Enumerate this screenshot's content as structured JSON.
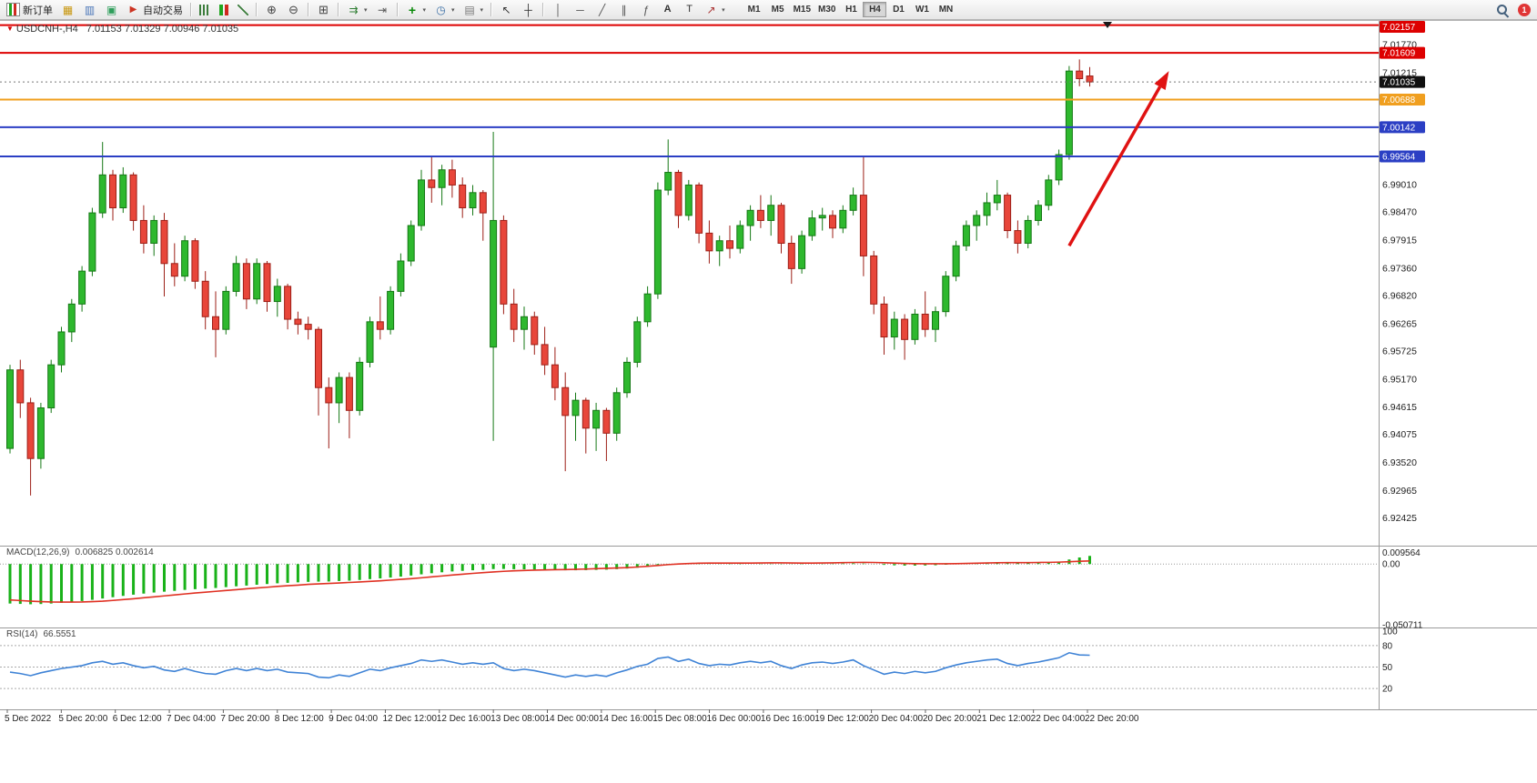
{
  "toolbar": {
    "new_order_label": "新订单",
    "autotrading_label": "自动交易",
    "timeframes": [
      "M1",
      "M5",
      "M15",
      "M30",
      "H1",
      "H4",
      "D1",
      "W1",
      "MN"
    ],
    "active_timeframe": "H4",
    "alert_count": "1",
    "icon_glyphs": {
      "charts_grid": "▦",
      "profiles": "▥",
      "market_watch": "▣",
      "autotrading_play": "▶",
      "zoom_in": "⊕",
      "zoom_out": "⊖",
      "tile_windows": "⊞",
      "auto_scroll": "⇉",
      "chart_shift": "⇥",
      "indicators": "+",
      "periods": "◷",
      "templates": "▤",
      "cursor": "↖",
      "crosshair": "┼",
      "vline": "│",
      "hline": "─",
      "trendline": "╱",
      "channel": "∥",
      "fibonacci": "ƒ",
      "text_tool": "A",
      "label_tool": "T",
      "arrows_tool": "↗",
      "caret": "▾",
      "title_triangle": "▼"
    }
  },
  "chart_data": {
    "type": "candlestick",
    "symbol": "USDCNH-",
    "timeframe": "H4",
    "title": "USDCNH-,H4",
    "ohlc_display": "7.01153 7.01329 7.00946 7.01035",
    "ylim": [
      6.9188,
      7.0224
    ],
    "up_color": "#2eb82e",
    "up_border": "#157815",
    "down_color": "#e8463a",
    "down_border": "#9c1f17",
    "candles": [
      [
        6.938,
        6.9545,
        6.937,
        6.9535
      ],
      [
        6.9535,
        6.9555,
        6.944,
        6.947
      ],
      [
        6.947,
        6.948,
        6.9287,
        6.936
      ],
      [
        6.936,
        6.947,
        6.934,
        6.946
      ],
      [
        6.946,
        6.9555,
        6.945,
        6.9545
      ],
      [
        6.9545,
        6.962,
        6.953,
        6.961
      ],
      [
        6.961,
        6.9675,
        6.959,
        6.9665
      ],
      [
        6.9665,
        6.974,
        6.965,
        6.973
      ],
      [
        6.973,
        6.9855,
        6.972,
        6.9845
      ],
      [
        6.9845,
        6.9985,
        6.9835,
        6.992
      ],
      [
        6.992,
        6.993,
        6.983,
        6.9855
      ],
      [
        6.9855,
        6.9935,
        6.9845,
        6.992
      ],
      [
        6.992,
        6.9925,
        6.981,
        6.983
      ],
      [
        6.983,
        6.986,
        6.9765,
        6.9785
      ],
      [
        6.9785,
        6.984,
        6.976,
        6.983
      ],
      [
        6.983,
        6.9845,
        6.968,
        6.9745
      ],
      [
        6.9745,
        6.9785,
        6.97,
        6.972
      ],
      [
        6.972,
        6.98,
        6.971,
        6.979
      ],
      [
        6.979,
        6.9795,
        6.9695,
        6.971
      ],
      [
        6.971,
        6.973,
        6.9615,
        6.964
      ],
      [
        6.964,
        6.969,
        6.956,
        6.9615
      ],
      [
        6.9615,
        6.97,
        6.9605,
        6.969
      ],
      [
        6.969,
        6.976,
        6.968,
        6.9745
      ],
      [
        6.9745,
        6.9755,
        6.9655,
        6.9675
      ],
      [
        6.9675,
        6.9755,
        6.9665,
        6.9745
      ],
      [
        6.9745,
        6.975,
        6.965,
        6.967
      ],
      [
        6.967,
        6.9715,
        6.964,
        6.97
      ],
      [
        6.97,
        6.9705,
        6.9615,
        6.9635
      ],
      [
        6.9635,
        6.965,
        6.9605,
        6.9625
      ],
      [
        6.9625,
        6.964,
        6.9595,
        6.9615
      ],
      [
        6.9615,
        6.962,
        6.9445,
        6.95
      ],
      [
        6.95,
        6.952,
        6.938,
        6.947
      ],
      [
        6.947,
        6.953,
        6.943,
        6.952
      ],
      [
        6.952,
        6.953,
        6.94,
        6.9455
      ],
      [
        6.9455,
        6.956,
        6.9445,
        6.955
      ],
      [
        6.955,
        6.964,
        6.954,
        6.963
      ],
      [
        6.963,
        6.968,
        6.9595,
        6.9615
      ],
      [
        6.9615,
        6.97,
        6.9605,
        6.969
      ],
      [
        6.969,
        6.9765,
        6.968,
        6.975
      ],
      [
        6.975,
        6.983,
        6.974,
        6.982
      ],
      [
        6.982,
        6.993,
        6.981,
        6.991
      ],
      [
        6.991,
        6.9955,
        6.9865,
        6.9895
      ],
      [
        6.9895,
        6.994,
        6.986,
        6.993
      ],
      [
        6.993,
        6.995,
        6.9875,
        6.99
      ],
      [
        6.99,
        6.9915,
        6.9835,
        6.9855
      ],
      [
        6.9855,
        6.99,
        6.984,
        6.9885
      ],
      [
        6.9885,
        6.989,
        6.979,
        6.9845
      ],
      [
        6.958,
        7.0005,
        6.9395,
        6.983
      ],
      [
        6.983,
        6.984,
        6.9645,
        6.9665
      ],
      [
        6.9665,
        6.9695,
        6.959,
        6.9615
      ],
      [
        6.9615,
        6.966,
        6.9575,
        6.964
      ],
      [
        6.964,
        6.965,
        6.9565,
        6.9585
      ],
      [
        6.9585,
        6.962,
        6.9525,
        6.9545
      ],
      [
        6.9545,
        6.958,
        6.9475,
        6.95
      ],
      [
        6.95,
        6.953,
        6.9335,
        6.9445
      ],
      [
        6.9445,
        6.949,
        6.9395,
        6.9475
      ],
      [
        6.9475,
        6.948,
        6.937,
        6.942
      ],
      [
        6.942,
        6.947,
        6.9375,
        6.9455
      ],
      [
        6.9455,
        6.946,
        6.9355,
        6.941
      ],
      [
        6.941,
        6.95,
        6.9395,
        6.949
      ],
      [
        6.949,
        6.956,
        6.948,
        6.955
      ],
      [
        6.955,
        6.964,
        6.954,
        6.963
      ],
      [
        6.963,
        6.97,
        6.962,
        6.9685
      ],
      [
        6.9685,
        6.9905,
        6.9675,
        6.989
      ],
      [
        6.989,
        6.999,
        6.988,
        6.9925
      ],
      [
        6.9925,
        6.993,
        6.9815,
        6.984
      ],
      [
        6.984,
        6.991,
        6.983,
        6.99
      ],
      [
        6.99,
        6.9905,
        6.9785,
        6.9805
      ],
      [
        6.9805,
        6.983,
        6.9745,
        6.977
      ],
      [
        6.977,
        6.98,
        6.974,
        6.979
      ],
      [
        6.979,
        6.982,
        6.9755,
        6.9775
      ],
      [
        6.9775,
        6.983,
        6.9765,
        6.982
      ],
      [
        6.982,
        6.986,
        6.979,
        6.985
      ],
      [
        6.985,
        6.988,
        6.9815,
        6.983
      ],
      [
        6.983,
        6.988,
        6.98,
        6.986
      ],
      [
        6.986,
        6.9865,
        6.9765,
        6.9785
      ],
      [
        6.9785,
        6.98,
        6.9705,
        6.9735
      ],
      [
        6.9735,
        6.981,
        6.9725,
        6.98
      ],
      [
        6.98,
        6.985,
        6.979,
        6.9835
      ],
      [
        6.9835,
        6.9855,
        6.981,
        6.984
      ],
      [
        6.984,
        6.985,
        6.9795,
        6.9815
      ],
      [
        6.9815,
        6.986,
        6.9805,
        6.985
      ],
      [
        6.985,
        6.9895,
        6.984,
        6.988
      ],
      [
        6.988,
        6.9955,
        6.972,
        6.976
      ],
      [
        6.976,
        6.977,
        6.9645,
        6.9665
      ],
      [
        6.9665,
        6.968,
        6.9565,
        6.96
      ],
      [
        6.96,
        6.965,
        6.9575,
        6.9635
      ],
      [
        6.9635,
        6.9645,
        6.9555,
        6.9595
      ],
      [
        6.9595,
        6.9655,
        6.9585,
        6.9645
      ],
      [
        6.9645,
        6.969,
        6.96,
        6.9615
      ],
      [
        6.9615,
        6.966,
        6.959,
        6.965
      ],
      [
        6.965,
        6.973,
        6.964,
        6.972
      ],
      [
        6.972,
        6.979,
        6.971,
        6.978
      ],
      [
        6.978,
        6.983,
        6.977,
        6.982
      ],
      [
        6.982,
        6.985,
        6.979,
        6.984
      ],
      [
        6.984,
        6.9885,
        6.982,
        6.9865
      ],
      [
        6.9865,
        6.991,
        6.985,
        6.988
      ],
      [
        6.988,
        6.9885,
        6.9795,
        6.981
      ],
      [
        6.981,
        6.983,
        6.9765,
        6.9785
      ],
      [
        6.9785,
        6.984,
        6.9775,
        6.983
      ],
      [
        6.983,
        6.987,
        6.982,
        6.986
      ],
      [
        6.986,
        6.992,
        6.985,
        6.991
      ],
      [
        6.991,
        6.997,
        6.99,
        6.996
      ],
      [
        6.996,
        7.0135,
        6.995,
        7.0125
      ],
      [
        7.0125,
        7.0148,
        7.0095,
        7.011
      ],
      [
        7.01153,
        7.01329,
        7.00946,
        7.01035
      ]
    ],
    "x_labels": [
      "5 Dec 2022",
      "5 Dec 20:00",
      "6 Dec 12:00",
      "7 Dec 04:00",
      "7 Dec 20:00",
      "8 Dec 12:00",
      "9 Dec 04:00",
      "12 Dec 12:00",
      "12 Dec 16:00",
      "13 Dec 08:00",
      "14 Dec 00:00",
      "14 Dec 16:00",
      "15 Dec 08:00",
      "16 Dec 00:00",
      "16 Dec 16:00",
      "19 Dec 12:00",
      "20 Dec 04:00",
      "20 Dec 20:00",
      "21 Dec 12:00",
      "22 Dec 04:00",
      "22 Dec 20:00"
    ],
    "y_ticks": [
      7.0177,
      7.01215,
      6.9901,
      6.9847,
      6.97915,
      6.9736,
      6.9682,
      6.96265,
      6.95725,
      6.9517,
      6.94615,
      6.94075,
      6.9352,
      6.92965,
      6.92425
    ],
    "price_lines": [
      {
        "price": 7.02157,
        "color": "#dd0000",
        "label": "7.02157"
      },
      {
        "price": 7.01609,
        "color": "#dd0000",
        "label": "7.01609"
      },
      {
        "price": 7.00688,
        "color": "#f09f1f",
        "label": "7.00688"
      },
      {
        "price": 7.00142,
        "color": "#2b3fc4",
        "label": "7.00142"
      },
      {
        "price": 6.99564,
        "color": "#2b3fc4",
        "label": "6.99564"
      }
    ],
    "current_price": {
      "price": 7.01035,
      "label": "7.01035",
      "badge_color": "#101010"
    },
    "arrow": {
      "start": {
        "bar": 103,
        "price": 6.978
      },
      "end": {
        "bar": 112.7,
        "price": 7.0125
      },
      "color": "#e01212"
    },
    "macd": {
      "name": "MACD(12,26,9)",
      "values_display": "0.006825 0.002614",
      "ylim": [
        -0.053,
        0.0146
      ],
      "hist_color": "#19b219",
      "signal_color": "#e03022",
      "y_ticks": [
        {
          "v": 0.009564,
          "label": "0.009564"
        },
        {
          "v": 0,
          "label": "0.00"
        },
        {
          "v": -0.050711,
          "label": "-0.050711"
        }
      ],
      "histogram": [
        -0.033,
        -0.0333,
        -0.0336,
        -0.0334,
        -0.033,
        -0.0324,
        -0.0317,
        -0.0309,
        -0.0299,
        -0.0288,
        -0.0277,
        -0.0266,
        -0.0256,
        -0.0247,
        -0.0238,
        -0.0231,
        -0.0224,
        -0.0216,
        -0.021,
        -0.0205,
        -0.02,
        -0.0193,
        -0.0186,
        -0.018,
        -0.0173,
        -0.0167,
        -0.0161,
        -0.0157,
        -0.0153,
        -0.0149,
        -0.0147,
        -0.0146,
        -0.0142,
        -0.0139,
        -0.0133,
        -0.0126,
        -0.012,
        -0.0113,
        -0.0105,
        -0.0096,
        -0.0086,
        -0.0077,
        -0.0069,
        -0.0062,
        -0.0057,
        -0.0052,
        -0.0048,
        -0.0042,
        -0.0041,
        -0.0043,
        -0.0044,
        -0.0045,
        -0.0047,
        -0.0049,
        -0.0052,
        -0.0052,
        -0.0051,
        -0.0049,
        -0.0047,
        -0.0043,
        -0.0038,
        -0.0031,
        -0.0024,
        -0.0015,
        -0.0006,
        -0.0002,
        0.0002,
        0.0003,
        0.0001,
        -0.0001,
        -0.0002,
        -0.0002,
        0.0,
        0.0002,
        0.0003,
        0.0002,
        -0.0001,
        -0.0002,
        0.0,
        0.0002,
        0.0003,
        0.0004,
        0.0006,
        0.0004,
        -0.0001,
        -0.0007,
        -0.0011,
        -0.0013,
        -0.0013,
        -0.0012,
        -0.001,
        -0.0006,
        -0.0001,
        0.0004,
        0.0008,
        0.0011,
        0.0013,
        0.0012,
        0.0009,
        0.0008,
        0.0009,
        0.0012,
        0.0018,
        0.0038,
        0.0055,
        0.0068
      ],
      "signal": [
        -0.03,
        -0.0305,
        -0.031,
        -0.0314,
        -0.0317,
        -0.0318,
        -0.0318,
        -0.0317,
        -0.0314,
        -0.031,
        -0.0304,
        -0.0297,
        -0.029,
        -0.0282,
        -0.0274,
        -0.0266,
        -0.0258,
        -0.025,
        -0.0242,
        -0.0235,
        -0.0228,
        -0.0221,
        -0.0214,
        -0.0207,
        -0.02,
        -0.0194,
        -0.0187,
        -0.0181,
        -0.0176,
        -0.017,
        -0.0166,
        -0.0162,
        -0.0158,
        -0.0154,
        -0.015,
        -0.0145,
        -0.014,
        -0.0134,
        -0.0128,
        -0.0122,
        -0.0115,
        -0.0107,
        -0.01,
        -0.0092,
        -0.0085,
        -0.0078,
        -0.0072,
        -0.0066,
        -0.0061,
        -0.0057,
        -0.0054,
        -0.0051,
        -0.0049,
        -0.0047,
        -0.0046,
        -0.0044,
        -0.0042,
        -0.0039,
        -0.0036,
        -0.0033,
        -0.003,
        -0.0025,
        -0.0019,
        -0.0012,
        -0.0005,
        0.0,
        0.0004,
        0.0007,
        0.0008,
        0.0008,
        0.0008,
        0.0008,
        0.0008,
        0.0009,
        0.001,
        0.001,
        0.0009,
        0.0008,
        0.0008,
        0.0009,
        0.001,
        0.0012,
        0.0013,
        0.0014,
        0.0013,
        0.0011,
        0.0008,
        0.0005,
        0.0003,
        0.0002,
        0.0002,
        0.0002,
        0.0003,
        0.0005,
        0.0007,
        0.0009,
        0.0011,
        0.0012,
        0.0012,
        0.0012,
        0.0013,
        0.0014,
        0.0016,
        0.0019,
        0.0023,
        0.0026
      ]
    },
    "rsi": {
      "name": "RSI(14)",
      "value_display": "66.5551",
      "ylim": [
        -9,
        104
      ],
      "line_color": "#3f83d6",
      "y_ticks": [
        {
          "v": 100,
          "label": "100",
          "line": false
        },
        {
          "v": 80,
          "label": "80",
          "line": true
        },
        {
          "v": 50,
          "label": "50",
          "line": true
        },
        {
          "v": 20,
          "label": "20",
          "line": true
        }
      ],
      "values": [
        43,
        41,
        38,
        42,
        45,
        48,
        50,
        52,
        56,
        58,
        54,
        56,
        52,
        49,
        51,
        46,
        44,
        48,
        44,
        41,
        40,
        45,
        48,
        45,
        48,
        45,
        47,
        43,
        42,
        41,
        36,
        35,
        39,
        37,
        42,
        47,
        45,
        49,
        52,
        55,
        60,
        58,
        60,
        57,
        54,
        56,
        54,
        56,
        48,
        45,
        47,
        45,
        42,
        39,
        36,
        39,
        37,
        39,
        37,
        42,
        46,
        51,
        54,
        62,
        64,
        58,
        61,
        55,
        52,
        54,
        53,
        56,
        58,
        56,
        58,
        52,
        48,
        53,
        56,
        57,
        55,
        57,
        60,
        52,
        46,
        40,
        43,
        41,
        44,
        42,
        44,
        49,
        53,
        56,
        58,
        60,
        61,
        55,
        52,
        55,
        57,
        60,
        63,
        70,
        67,
        66.56
      ]
    }
  }
}
